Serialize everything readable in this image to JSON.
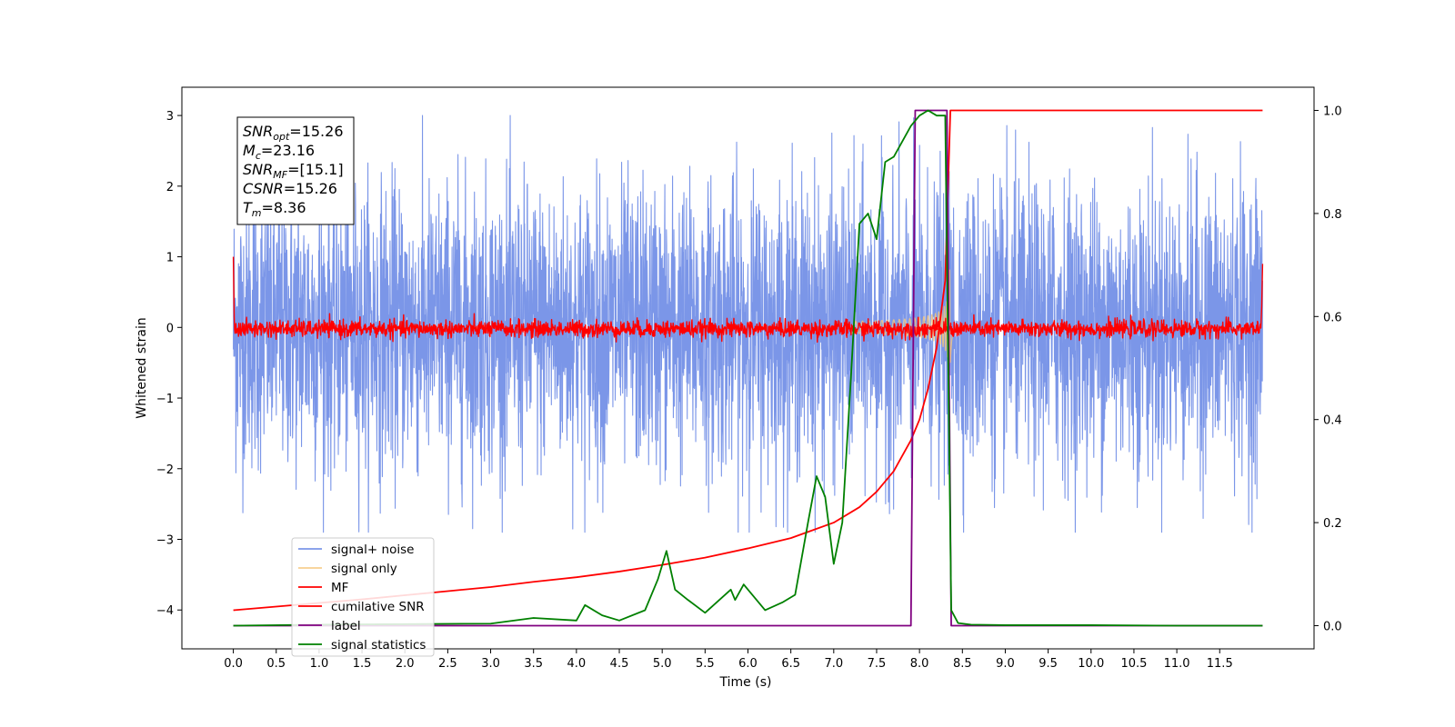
{
  "chart_data": {
    "type": "line",
    "title": "",
    "xlabel": "Time (s)",
    "ylabel": "Whitened strain",
    "y2label": "",
    "xlim": [
      -0.6,
      12.6
    ],
    "ylim": [
      -4.55,
      3.4
    ],
    "y2lim": [
      -0.045,
      1.045
    ],
    "x_ticks": [
      "0.0",
      "0.5",
      "1.0",
      "1.5",
      "2.0",
      "2.5",
      "3.0",
      "3.5",
      "4.0",
      "4.5",
      "5.0",
      "5.5",
      "6.0",
      "6.5",
      "7.0",
      "7.5",
      "8.0",
      "8.5",
      "9.0",
      "9.5",
      "10.0",
      "10.5",
      "11.0",
      "11.5"
    ],
    "y_ticks": [
      "3",
      "2",
      "1",
      "0",
      "−1",
      "−2",
      "−3",
      "−4"
    ],
    "y2_ticks": [
      "1.0",
      "0.8",
      "0.6",
      "0.4",
      "0.2",
      "0.0"
    ],
    "annotation": [
      {
        "main": "SNR",
        "sub": "opt",
        "value": "=15.26"
      },
      {
        "main": "M",
        "sub": "c",
        "value": "=23.16"
      },
      {
        "main": "SNR",
        "sub": "MF",
        "value": "=[15.1]"
      },
      {
        "main": "CSNR",
        "sub": "",
        "value": "=15.26"
      },
      {
        "main": "T",
        "sub": "m",
        "value": "=8.36"
      }
    ],
    "legend_position": "lower-left",
    "series": [
      {
        "name": "signal+ noise",
        "color": "#7b96e8",
        "axis": "left",
        "description": "noise, amplitude approx 1.0 std, peaks ±2.5; t 0–12 s"
      },
      {
        "name": "signal only",
        "color": "#f5c77e",
        "axis": "left",
        "description": "chirp growing from t≈7.2 to merger at t≈8.36 with amplitude ≈1.1"
      },
      {
        "name": "MF",
        "color": "#ff0000",
        "axis": "left",
        "description": "matched filter output ≈0 ± 0.1, starts at 1.0 and ends ≈0.9"
      },
      {
        "name": "cumilative SNR",
        "color": "#ff0000",
        "axis": "right",
        "x": [
          0.0,
          0.5,
          1.0,
          1.5,
          2.0,
          2.5,
          3.0,
          3.5,
          4.0,
          4.5,
          5.0,
          5.5,
          6.0,
          6.5,
          7.0,
          7.3,
          7.5,
          7.7,
          7.9,
          8.0,
          8.1,
          8.2,
          8.3,
          8.36,
          8.5,
          9.0,
          10.0,
          11.0,
          12.0
        ],
        "values": [
          0.03,
          0.037,
          0.044,
          0.051,
          0.059,
          0.067,
          0.075,
          0.085,
          0.094,
          0.105,
          0.118,
          0.132,
          0.15,
          0.17,
          0.2,
          0.23,
          0.26,
          0.3,
          0.36,
          0.4,
          0.46,
          0.54,
          0.67,
          1.0,
          1.0,
          1.0,
          1.0,
          1.0,
          1.0
        ]
      },
      {
        "name": "label",
        "color": "#800080",
        "axis": "right",
        "x": [
          0.0,
          7.9,
          7.95,
          8.32,
          8.37,
          12.0
        ],
        "values": [
          0.0,
          0.0,
          1.0,
          1.0,
          0.0,
          0.0
        ]
      },
      {
        "name": "signal statistics",
        "color": "#008000",
        "axis": "right",
        "x": [
          0.0,
          1.0,
          2.0,
          3.0,
          3.5,
          4.0,
          4.1,
          4.3,
          4.5,
          4.8,
          4.95,
          5.05,
          5.15,
          5.3,
          5.5,
          5.6,
          5.8,
          5.85,
          5.95,
          6.0,
          6.2,
          6.4,
          6.55,
          6.7,
          6.8,
          6.9,
          7.0,
          7.05,
          7.1,
          7.2,
          7.3,
          7.4,
          7.5,
          7.6,
          7.7,
          7.8,
          7.9,
          8.0,
          8.1,
          8.2,
          8.3,
          8.37,
          8.45,
          8.6,
          9.0,
          10.0,
          11.0,
          12.0
        ],
        "values": [
          0.0,
          0.002,
          0.003,
          0.004,
          0.015,
          0.01,
          0.04,
          0.02,
          0.01,
          0.03,
          0.09,
          0.145,
          0.07,
          0.05,
          0.025,
          0.04,
          0.07,
          0.05,
          0.08,
          0.07,
          0.03,
          0.045,
          0.06,
          0.2,
          0.29,
          0.25,
          0.12,
          0.16,
          0.2,
          0.48,
          0.78,
          0.8,
          0.75,
          0.9,
          0.91,
          0.94,
          0.97,
          0.99,
          1.0,
          0.99,
          0.99,
          0.03,
          0.005,
          0.002,
          0.001,
          0.001,
          0.0,
          0.0
        ]
      }
    ]
  }
}
